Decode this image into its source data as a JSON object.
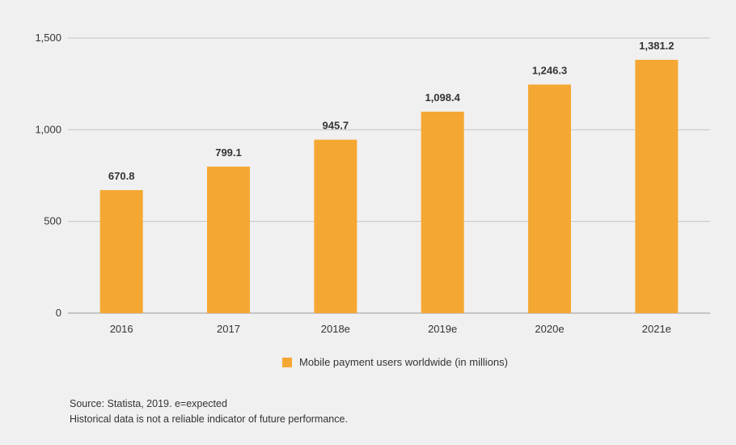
{
  "chart_data": {
    "type": "bar",
    "categories": [
      "2016",
      "2017",
      "2018e",
      "2019e",
      "2020e",
      "2021e"
    ],
    "series": [
      {
        "name": "Mobile payment users worldwide (in millions)",
        "values": [
          670.8,
          799.1,
          945.7,
          1098.4,
          1246.3,
          1381.2
        ],
        "value_labels": [
          "670.8",
          "799.1",
          "945.7",
          "1,098.4",
          "1,246.3",
          "1,381.2"
        ]
      }
    ],
    "ylim": [
      0,
      1500
    ],
    "yticks": [
      0,
      500,
      1000,
      1500
    ],
    "ytick_labels": [
      "0",
      "500",
      "1,000",
      "1,500"
    ],
    "grid": "horizontal",
    "legend_position": "bottom",
    "bar_color": "#f5a733",
    "grid_color": "#c4c4c4",
    "axis_color": "#9a9a9a"
  },
  "legend": {
    "label": "Mobile payment users worldwide (in millions)"
  },
  "footnotes": {
    "source": "Source: Statista, 2019. e=expected",
    "disclaimer": "Historical data is not a reliable indicator of future performance."
  }
}
